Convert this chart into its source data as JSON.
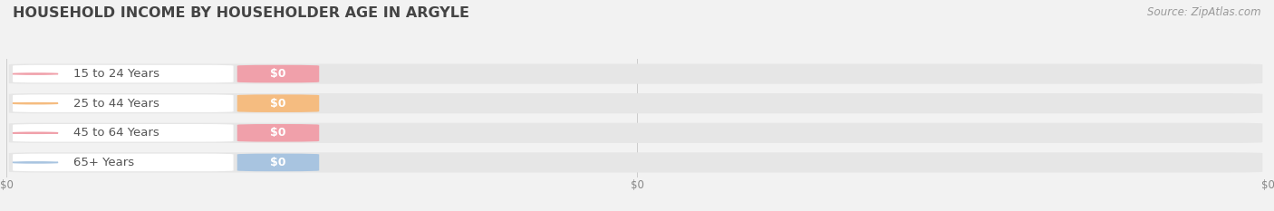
{
  "title": "HOUSEHOLD INCOME BY HOUSEHOLDER AGE IN ARGYLE",
  "source": "Source: ZipAtlas.com",
  "categories": [
    "15 to 24 Years",
    "25 to 44 Years",
    "45 to 64 Years",
    "65+ Years"
  ],
  "values": [
    0,
    0,
    0,
    0
  ],
  "bar_colors": [
    "#f0a0aa",
    "#f5bc80",
    "#f0a0aa",
    "#a8c4e0"
  ],
  "background_color": "#f2f2f2",
  "bar_bg_color": "#e6e6e6",
  "white_label_bg": "#ffffff",
  "xlim": [
    0,
    1
  ],
  "title_fontsize": 11.5,
  "source_fontsize": 8.5,
  "tick_fontsize": 8.5,
  "label_fontsize": 9.5,
  "value_fontsize": 9,
  "xticks": [
    0,
    0.5,
    1.0
  ],
  "xtick_labels": [
    "$0",
    "$0",
    "$0"
  ]
}
